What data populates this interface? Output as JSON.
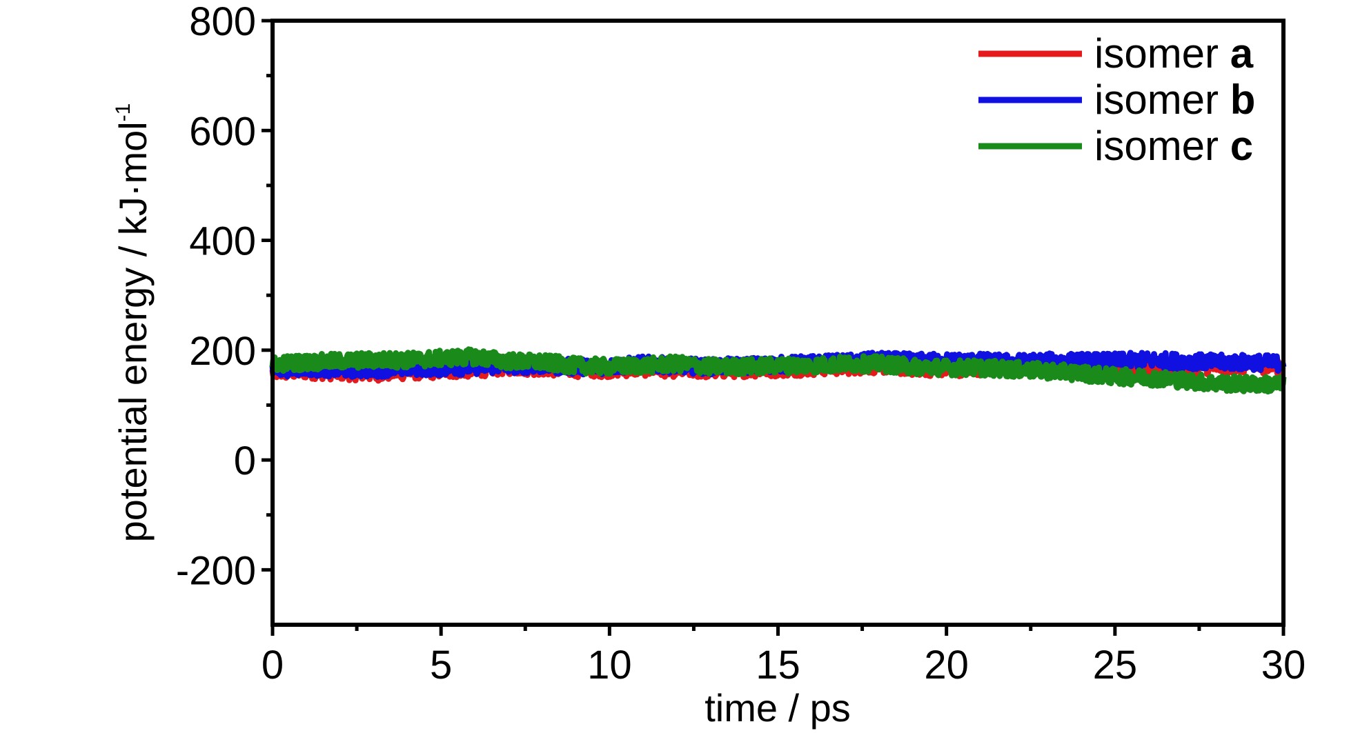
{
  "chart_data": {
    "type": "line",
    "title": "",
    "xlabel": "time / ps",
    "ylabel_main": "potential energy / kJ·mol",
    "ylabel_sup": "-1",
    "xlim": [
      0,
      30
    ],
    "ylim": [
      -300,
      800
    ],
    "x_ticks": [
      0,
      5,
      10,
      15,
      20,
      25,
      30
    ],
    "x_tick_labels": [
      "0",
      "5",
      "10",
      "15",
      "20",
      "25",
      "30"
    ],
    "y_ticks": [
      -200,
      0,
      200,
      400,
      600,
      800
    ],
    "y_tick_labels": [
      "-200",
      "0",
      "200",
      "400",
      "600",
      "800"
    ],
    "x_minor_step": 2.5,
    "y_minor_step": 100,
    "grid": false,
    "legend_position": "top-right",
    "x": [
      0,
      1,
      2,
      3,
      4,
      5,
      6,
      7,
      8,
      9,
      10,
      11,
      12,
      13,
      14,
      15,
      16,
      17,
      18,
      19,
      20,
      21,
      22,
      23,
      24,
      25,
      26,
      27,
      28,
      29,
      30
    ],
    "series": [
      {
        "name": "isomer",
        "name_bold": "a",
        "color": "#e41a1c",
        "values": [
          160,
          162,
          160,
          158,
          161,
          163,
          165,
          170,
          168,
          165,
          165,
          167,
          165,
          163,
          165,
          166,
          168,
          170,
          172,
          168,
          166,
          168,
          170,
          168,
          170,
          168,
          168,
          170,
          170,
          172,
          172
        ]
      },
      {
        "name": "isomer",
        "name_bold": "b",
        "color": "#1010e0",
        "values": [
          165,
          168,
          165,
          165,
          168,
          168,
          170,
          172,
          172,
          170,
          170,
          175,
          172,
          170,
          172,
          174,
          176,
          178,
          182,
          180,
          180,
          180,
          178,
          180,
          180,
          180,
          182,
          180,
          178,
          178,
          176
        ]
      },
      {
        "name": "isomer",
        "name_bold": "c",
        "color": "#1a8a1a",
        "values": [
          175,
          178,
          180,
          182,
          182,
          185,
          188,
          180,
          178,
          172,
          170,
          172,
          175,
          170,
          170,
          172,
          172,
          175,
          175,
          170,
          168,
          168,
          165,
          162,
          158,
          152,
          150,
          145,
          140,
          138,
          138
        ]
      }
    ]
  }
}
